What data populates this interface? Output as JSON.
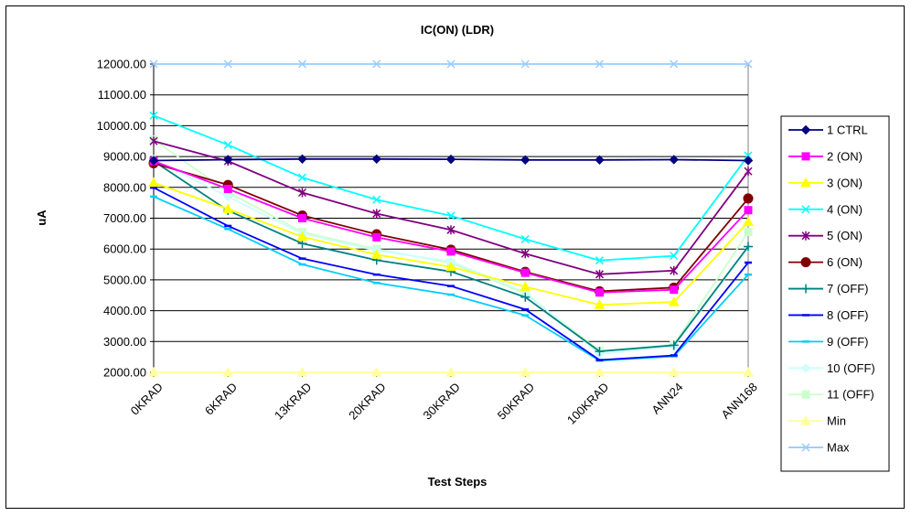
{
  "chart_data": {
    "type": "line",
    "title": "IC(ON) (LDR)",
    "xlabel": "Test Steps",
    "ylabel": "uA",
    "categories": [
      "0KRAD",
      "6KRAD",
      "13KRAD",
      "20KRAD",
      "30KRAD",
      "50KRAD",
      "100KRAD",
      "ANN24",
      "ANN168"
    ],
    "ylim": [
      2000,
      12000
    ],
    "yticks": [
      "2000.00",
      "3000.00",
      "4000.00",
      "5000.00",
      "6000.00",
      "7000.00",
      "8000.00",
      "9000.00",
      "10000.00",
      "11000.00",
      "12000.00"
    ],
    "grid": true,
    "legend_position": "right",
    "series": [
      {
        "name": "1 CTRL",
        "color": "#000080",
        "marker": "diamond",
        "values": [
          8870,
          8900,
          8920,
          8920,
          8910,
          8890,
          8890,
          8900,
          8870
        ]
      },
      {
        "name": "2 (ON)",
        "color": "#FF00FF",
        "marker": "square",
        "values": [
          8850,
          7950,
          7000,
          6380,
          5920,
          5230,
          4590,
          4680,
          7260
        ]
      },
      {
        "name": "3 (ON)",
        "color": "#FFFF00",
        "marker": "triangle",
        "values": [
          8150,
          7300,
          6400,
          5820,
          5420,
          4780,
          4190,
          4280,
          6880
        ]
      },
      {
        "name": "4 (ON)",
        "color": "#00FFFF",
        "marker": "x",
        "values": [
          10330,
          9380,
          8320,
          7600,
          7080,
          6320,
          5630,
          5780,
          9030
        ]
      },
      {
        "name": "5 (ON)",
        "color": "#800080",
        "marker": "star",
        "values": [
          9500,
          8850,
          7830,
          7150,
          6620,
          5850,
          5180,
          5300,
          8520
        ]
      },
      {
        "name": "6 (ON)",
        "color": "#800000",
        "marker": "circle",
        "values": [
          8780,
          8080,
          7090,
          6480,
          5980,
          5260,
          4630,
          4750,
          7640
        ]
      },
      {
        "name": "7 (OFF)",
        "color": "#008080",
        "marker": "plus",
        "values": [
          8850,
          7250,
          6180,
          5640,
          5270,
          4440,
          2680,
          2880,
          6080
        ]
      },
      {
        "name": "8 (OFF)",
        "color": "#0000FF",
        "marker": "dash",
        "values": [
          7990,
          6750,
          5690,
          5170,
          4800,
          4040,
          2400,
          2550,
          5560
        ]
      },
      {
        "name": "9 (OFF)",
        "color": "#00CCFF",
        "marker": "dash",
        "values": [
          7700,
          6650,
          5500,
          4900,
          4520,
          3850,
          2380,
          2520,
          5170
        ]
      },
      {
        "name": "10 (OFF)",
        "color": "#CCFFFF",
        "marker": "diamond",
        "values": [
          8900,
          7700,
          6500,
          5950,
          5600,
          4600,
          2600,
          2850,
          6050
        ]
      },
      {
        "name": "11 (OFF)",
        "color": "#CCFFCC",
        "marker": "square",
        "values": [
          9550,
          7850,
          6550,
          6000,
          5550,
          4550,
          2700,
          2900,
          6550
        ]
      },
      {
        "name": "Min",
        "color": "#FFFF99",
        "marker": "triangle",
        "values": [
          2000,
          2000,
          2000,
          2000,
          2000,
          2000,
          2000,
          2000,
          2000
        ]
      },
      {
        "name": "Max",
        "color": "#99CCFF",
        "marker": "x",
        "values": [
          12000,
          12000,
          12000,
          12000,
          12000,
          12000,
          12000,
          12000,
          12000
        ]
      }
    ]
  }
}
